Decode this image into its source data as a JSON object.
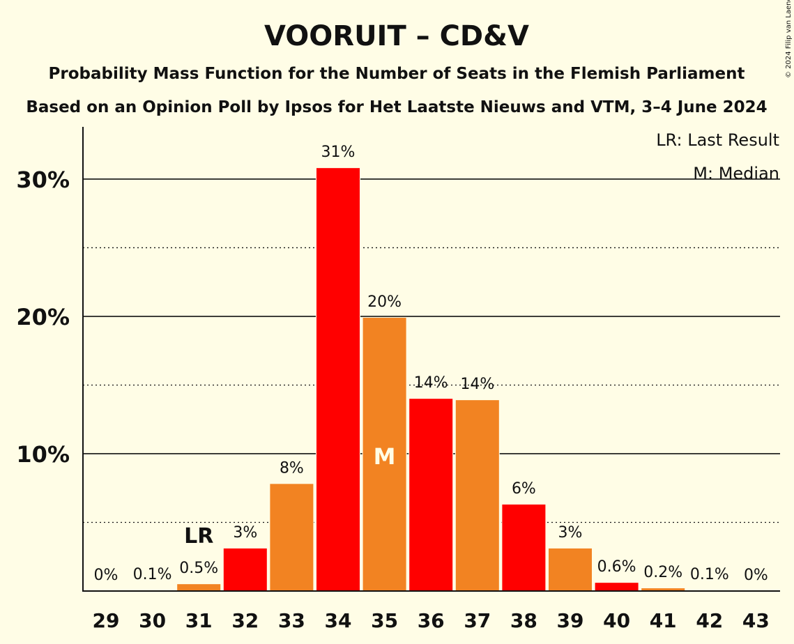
{
  "title": "VOORUIT – CD&V",
  "subtitle1": "Probability Mass Function for the Number of Seats in the Flemish Parliament",
  "subtitle2": "Based on an Opinion Poll by Ipsos for Het Laatste Nieuws and VTM, 3–4 June 2024",
  "copyright": "© 2024 Filip van Laenen",
  "legend": {
    "last_result": "LR: Last Result",
    "median": "M: Median"
  },
  "colors": {
    "background": "#fffde6",
    "bar_red": "#ff0000",
    "bar_orange": "#f28322",
    "axis": "#111111"
  },
  "chart_data": {
    "type": "bar",
    "categories": [
      "29",
      "30",
      "31",
      "32",
      "33",
      "34",
      "35",
      "36",
      "37",
      "38",
      "39",
      "40",
      "41",
      "42",
      "43"
    ],
    "values": [
      0,
      0.05,
      0.5,
      3.1,
      7.8,
      30.8,
      19.9,
      14.0,
      13.9,
      6.3,
      3.1,
      0.6,
      0.2,
      0.05,
      0
    ],
    "data_labels": [
      "0%",
      "0.1%",
      "0.5%",
      "3%",
      "8%",
      "31%",
      "20%",
      "14%",
      "14%",
      "6%",
      "3%",
      "0.6%",
      "0.2%",
      "0.1%",
      "0%"
    ],
    "bar_colors": [
      "#ff0000",
      "#f28322",
      "#f28322",
      "#ff0000",
      "#f28322",
      "#ff0000",
      "#f28322",
      "#ff0000",
      "#f28322",
      "#ff0000",
      "#f28322",
      "#ff0000",
      "#f28322",
      "#ff0000",
      "#f28322"
    ],
    "yticks": [
      10,
      20,
      30
    ],
    "ytick_labels": [
      "10%",
      "20%",
      "30%"
    ],
    "minor_gridlines": [
      5,
      15,
      25
    ],
    "ylim": [
      0,
      33.6
    ],
    "last_result": {
      "category": "31",
      "label": "LR"
    },
    "median": {
      "category": "35",
      "label": "M"
    },
    "grid": true,
    "legend_position": "top-right"
  }
}
